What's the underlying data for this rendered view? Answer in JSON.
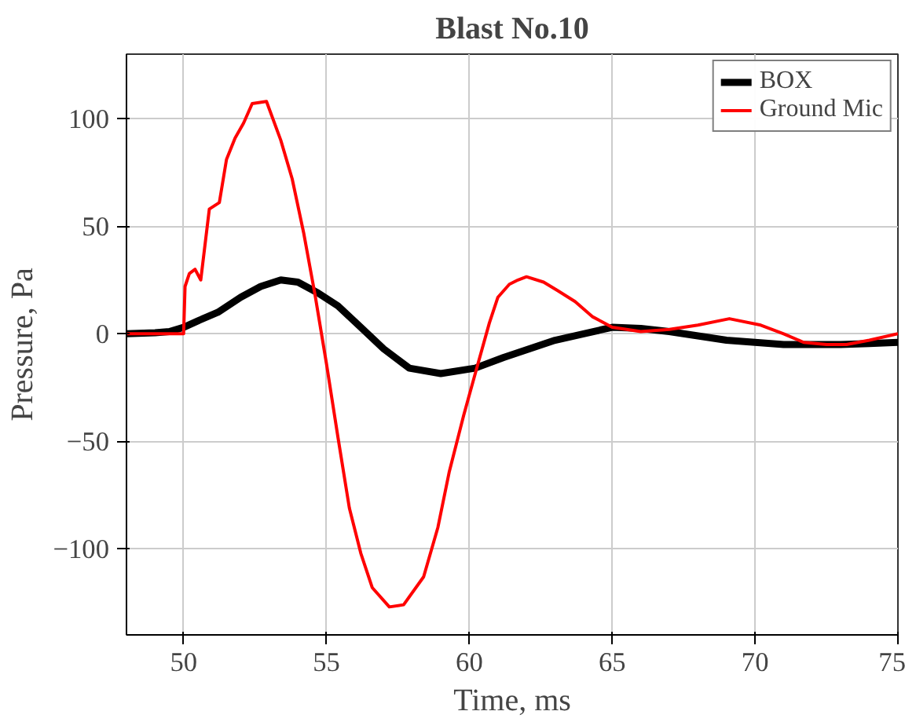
{
  "chart_data": {
    "type": "line",
    "title": "Blast No.10",
    "xlabel": "Time, ms",
    "ylabel": "Pressure, Pa",
    "xlim": [
      48,
      75
    ],
    "ylim": [
      -140,
      130
    ],
    "xticks": [
      50,
      55,
      60,
      65,
      70,
      75
    ],
    "yticks": [
      -100,
      -50,
      0,
      50,
      100
    ],
    "grid": true,
    "legend": "top right",
    "series": [
      {
        "name": "BOX",
        "color": "#000000",
        "x": [
          48,
          49,
          49.5,
          50,
          50.5,
          51.2,
          52,
          52.7,
          53.4,
          54,
          54.7,
          55.4,
          56.2,
          57,
          57.9,
          59,
          60.2,
          61.2,
          62.1,
          63,
          64,
          65,
          66,
          67,
          68,
          69,
          70,
          71,
          71.7,
          73,
          74,
          75
        ],
        "values": [
          0,
          0.5,
          1,
          3,
          6,
          10,
          17,
          22,
          25,
          24,
          19,
          13,
          3,
          -7,
          -16,
          -18.5,
          -16,
          -11,
          -7,
          -3,
          0,
          3,
          2.5,
          1,
          -1,
          -3,
          -4,
          -5,
          -5,
          -5,
          -4.5,
          -4
        ]
      },
      {
        "name": "Ground Mic",
        "color": "#ff0000",
        "x": [
          48,
          49,
          50,
          50.05,
          50.2,
          50.4,
          50.6,
          50.9,
          51.25,
          51.5,
          51.8,
          52.1,
          52.4,
          52.9,
          53.4,
          53.8,
          54.2,
          54.6,
          55,
          55.4,
          55.8,
          56.2,
          56.6,
          57.2,
          57.7,
          58.4,
          58.9,
          59.3,
          59.8,
          60.3,
          60.7,
          61,
          61.4,
          61.7,
          62,
          62.6,
          63.1,
          63.7,
          64.3,
          65,
          66,
          67,
          68,
          69.1,
          70.2,
          71,
          71.7,
          72.5,
          73.2,
          74,
          75
        ],
        "values": [
          0,
          0,
          0,
          22,
          28,
          30,
          25,
          58,
          61,
          81,
          91,
          98,
          107,
          108,
          90,
          72,
          47,
          18,
          -14,
          -48,
          -81,
          -102,
          -118,
          -127,
          -126,
          -113,
          -90,
          -64,
          -38,
          -14,
          5,
          17,
          23,
          25,
          26.5,
          24,
          20,
          15,
          8,
          3,
          1,
          2,
          4,
          7,
          4,
          0,
          -4,
          -5,
          -5,
          -3,
          0
        ]
      }
    ]
  }
}
